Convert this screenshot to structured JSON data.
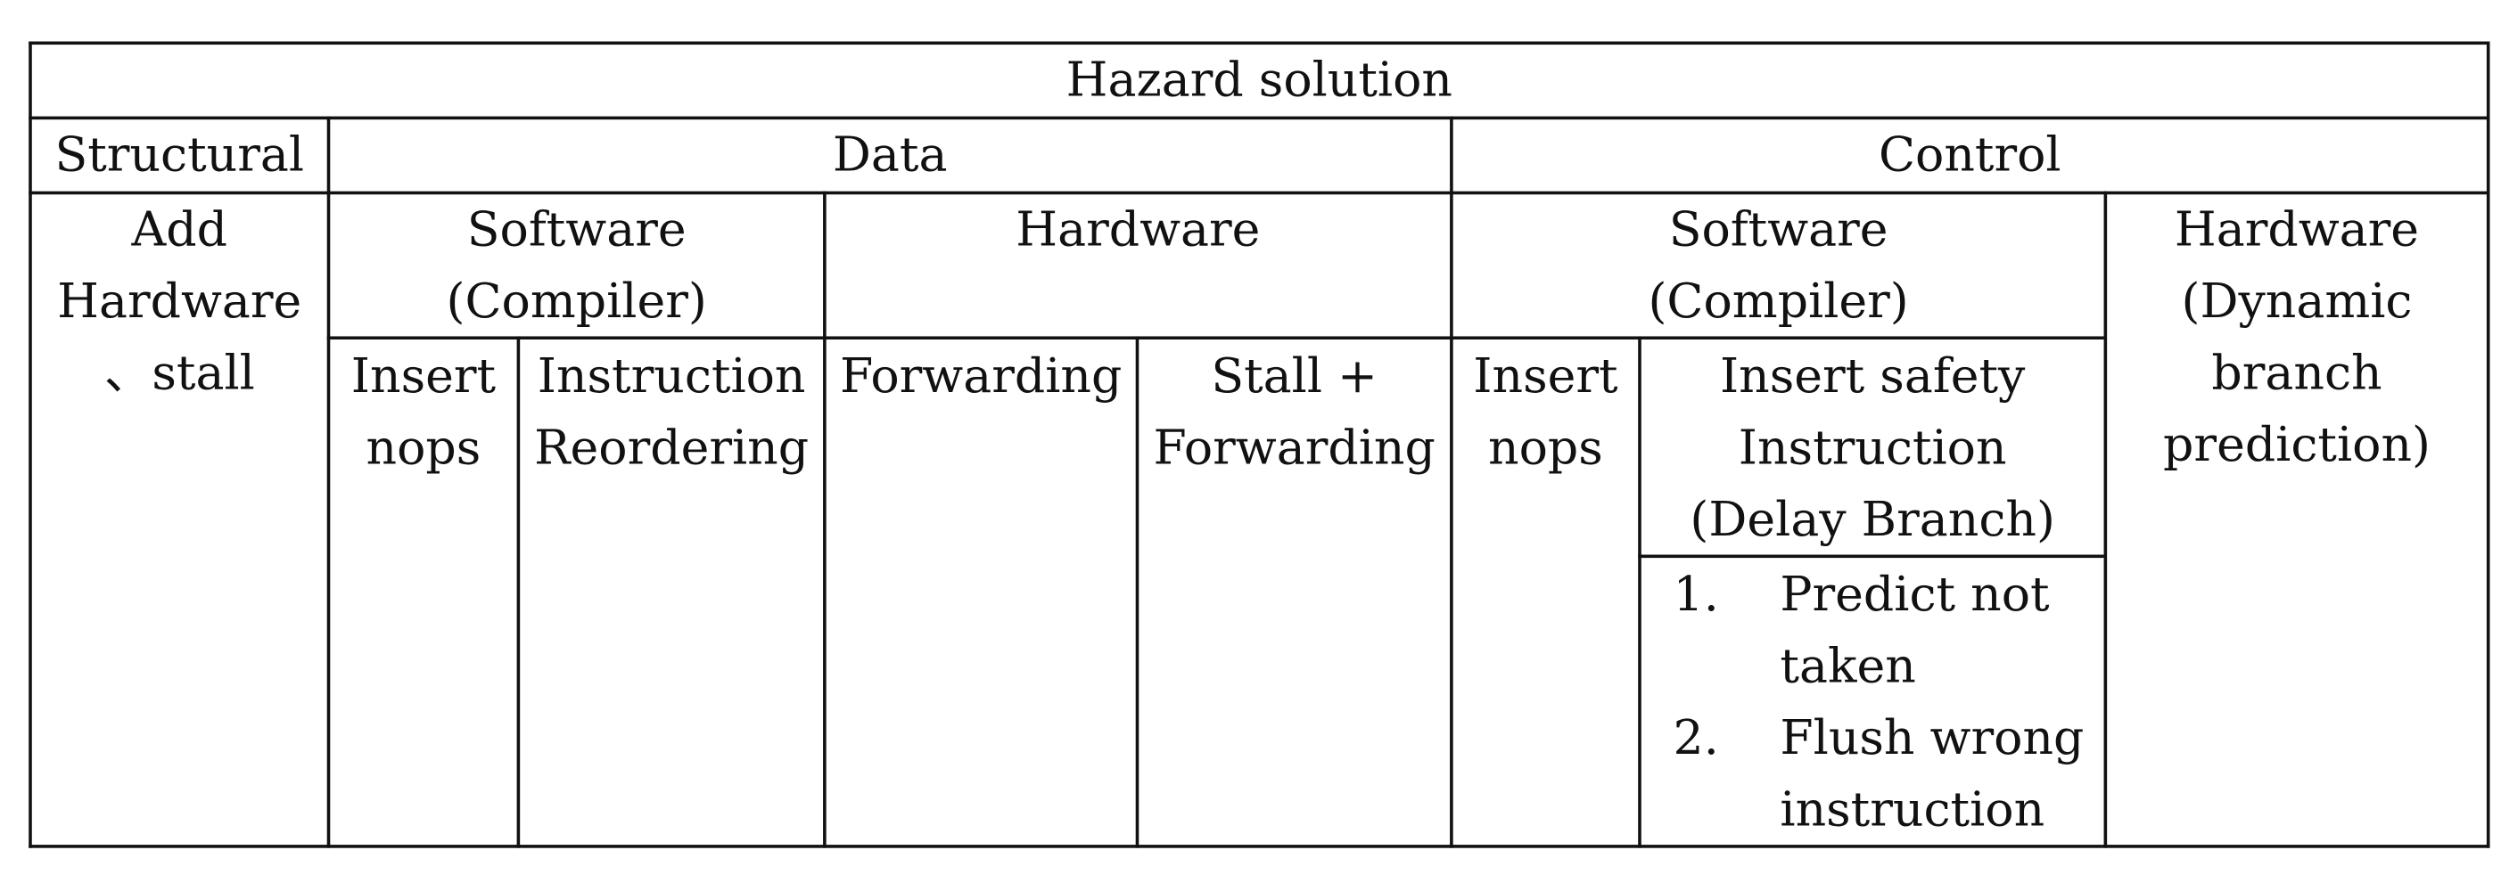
{
  "title": "Hazard solution",
  "columns": {
    "structural": {
      "header": "Structural",
      "solution_line1": "Add",
      "solution_line2": "Hardware",
      "solution_line3": "、stall"
    },
    "data": {
      "header": "Data",
      "software": {
        "line1": "Software",
        "line2": "(Compiler)",
        "methods": [
          {
            "line1": "Insert",
            "line2": "nops"
          },
          {
            "line1": "Instruction",
            "line2": "Reordering"
          }
        ]
      },
      "hardware": {
        "line1": "Hardware",
        "methods": [
          {
            "line1": "Forwarding"
          },
          {
            "line1": "Stall +",
            "line2": "Forwarding"
          }
        ]
      }
    },
    "control": {
      "header": "Control",
      "software": {
        "line1": "Software",
        "line2": "(Compiler)",
        "insert_nops": {
          "line1": "Insert",
          "line2": "nops"
        },
        "delay_branch": {
          "line1": "Insert safety",
          "line2": "Instruction",
          "line3": "(Delay Branch)",
          "items": [
            {
              "number": "1.",
              "line1": "Predict not",
              "line2": "taken"
            },
            {
              "number": "2.",
              "line1": "Flush wrong",
              "line2": "instruction"
            }
          ]
        }
      },
      "hardware": {
        "line1": "Hardware",
        "line2": "(Dynamic",
        "line3": "branch",
        "line4": "prediction)"
      }
    }
  }
}
